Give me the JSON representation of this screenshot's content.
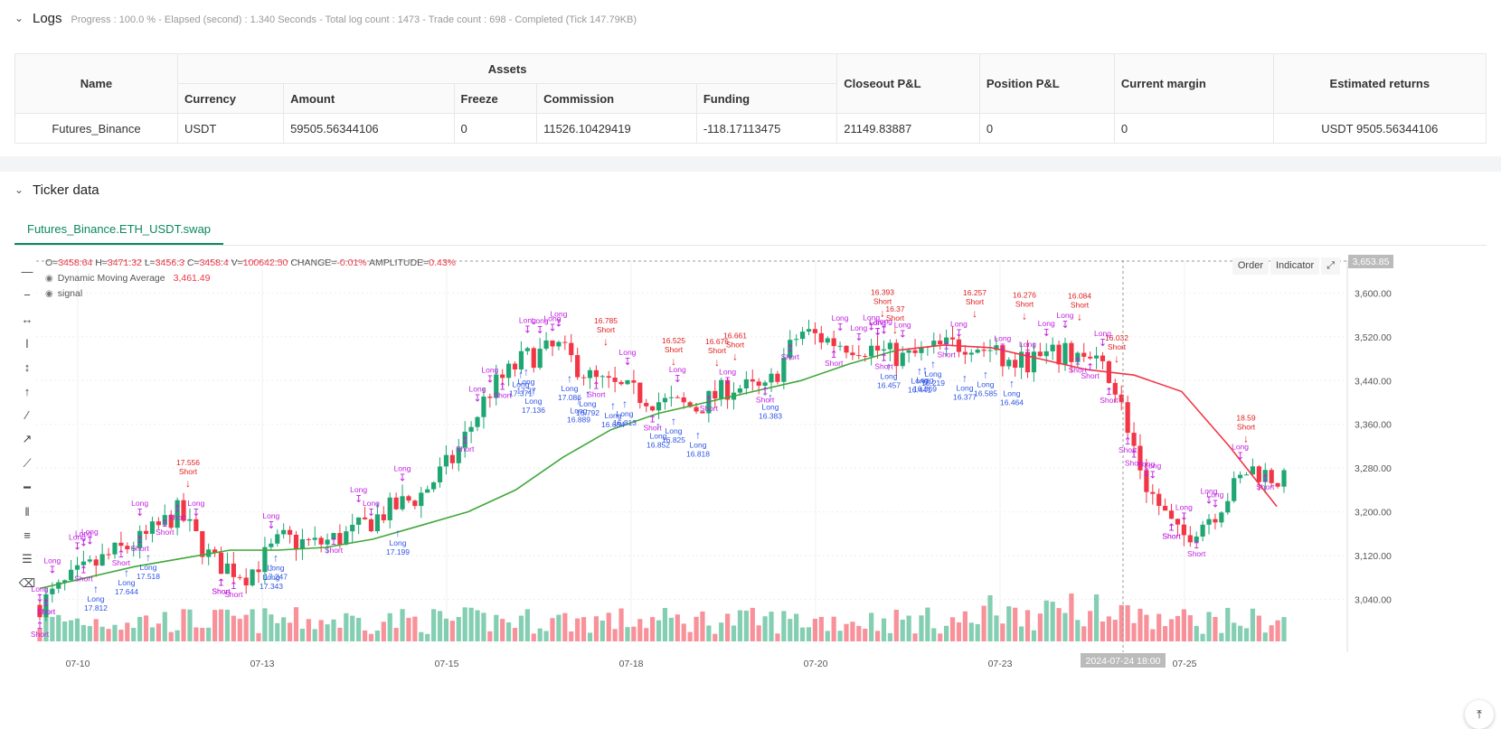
{
  "logs": {
    "title": "Logs",
    "summary": "Progress : 100.0 % - Elapsed (second) : 1.340  Seconds - Total log count : 1473 - Trade count : 698 - Completed (Tick 147.79KB)"
  },
  "assets_table": {
    "group_header": "Assets",
    "headers": {
      "name": "Name",
      "currency": "Currency",
      "amount": "Amount",
      "freeze": "Freeze",
      "commission": "Commission",
      "funding": "Funding",
      "closeout_pnl": "Closeout P&L",
      "position_pnl": "Position P&L",
      "current_margin": "Current margin",
      "estimated_returns": "Estimated returns"
    },
    "row": {
      "name": "Futures_Binance",
      "currency": "USDT",
      "amount": "59505.56344106",
      "freeze": "0",
      "commission": "11526.10429419",
      "funding": "-118.17113475",
      "closeout_pnl": "21149.83887",
      "position_pnl": "0",
      "current_margin": "0",
      "estimated_returns": "USDT 9505.56344106"
    }
  },
  "ticker": {
    "title": "Ticker data",
    "tab": "Futures_Binance.ETH_USDT.swap",
    "ohlc": {
      "o_label": "O=",
      "o": "3458.64",
      "h_label": "H=",
      "h": "3471.32",
      "l_label": "L=",
      "l": "3456.3",
      "c_label": "C=",
      "c": "3458.4",
      "v_label": "V=",
      "v": "100642.50",
      "change_label": "CHANGE=",
      "change": "-0.01%",
      "amplitude_label": "AMPLITUDE=",
      "amplitude": "0.43%"
    },
    "indicators": [
      {
        "name": "Dynamic Moving Average",
        "value": "3,461.49"
      },
      {
        "name": "signal",
        "value": ""
      }
    ],
    "buttons": {
      "order": "Order",
      "indicator": "Indicator"
    },
    "crosshair_date": "2024-07-24 18:00",
    "crosshair_price": "3,653.85"
  },
  "chart_data": {
    "type": "candlestick",
    "symbol": "ETH_USDT",
    "y_ticks": [
      "3,040.00",
      "3,120.00",
      "3,200.00",
      "3,280.00",
      "3,360.00",
      "3,440.00",
      "3,520.00",
      "3,600.00"
    ],
    "ylim": [
      2960,
      3660
    ],
    "x_ticks": [
      "07-10",
      "07-13",
      "07-15",
      "07-18",
      "07-20",
      "07-23",
      "07-25"
    ],
    "close_path": [
      3030,
      3080,
      3120,
      3150,
      3200,
      3110,
      3085,
      3150,
      3140,
      3160,
      3200,
      3230,
      3300,
      3420,
      3480,
      3500,
      3440,
      3420,
      3400,
      3390,
      3430,
      3420,
      3530,
      3510,
      3500,
      3480,
      3500,
      3510,
      3470,
      3480,
      3490,
      3450,
      3250,
      3150,
      3200,
      3280,
      3255
    ],
    "ma_path": [
      3060,
      3080,
      3100,
      3115,
      3130,
      3130,
      3135,
      3150,
      3175,
      3200,
      3240,
      3300,
      3350,
      3380,
      3400,
      3420,
      3440,
      3470,
      3495,
      3505,
      3500,
      3480,
      3460,
      3450,
      3420,
      3320,
      3210
    ],
    "colors": {
      "up": "#1fa672",
      "down": "#f23645",
      "ma_up": "#3fa73a",
      "ma_down": "#f23645",
      "long": "#2f55e4",
      "short": "#e02020",
      "signal": "#c020e0"
    },
    "annotations": {
      "short": [
        "17.556",
        "16.785",
        "16.525",
        "16.676",
        "16.661",
        "16.393",
        "16.37",
        "16.257",
        "16.276",
        "16.084",
        "16.032",
        "18.59"
      ],
      "long": [
        "17.812",
        "17.644",
        "17.518",
        "17.199",
        "17.343",
        "17.247",
        "17.371",
        "17.27",
        "17.136",
        "17.086",
        "16.889",
        "16.792",
        "16.684",
        "16.813",
        "16.852",
        "16.825",
        "16.818",
        "16.383",
        "16.457",
        "16.441",
        "16.369",
        "16.219",
        "16.377",
        "16.585",
        "16.464"
      ]
    }
  }
}
